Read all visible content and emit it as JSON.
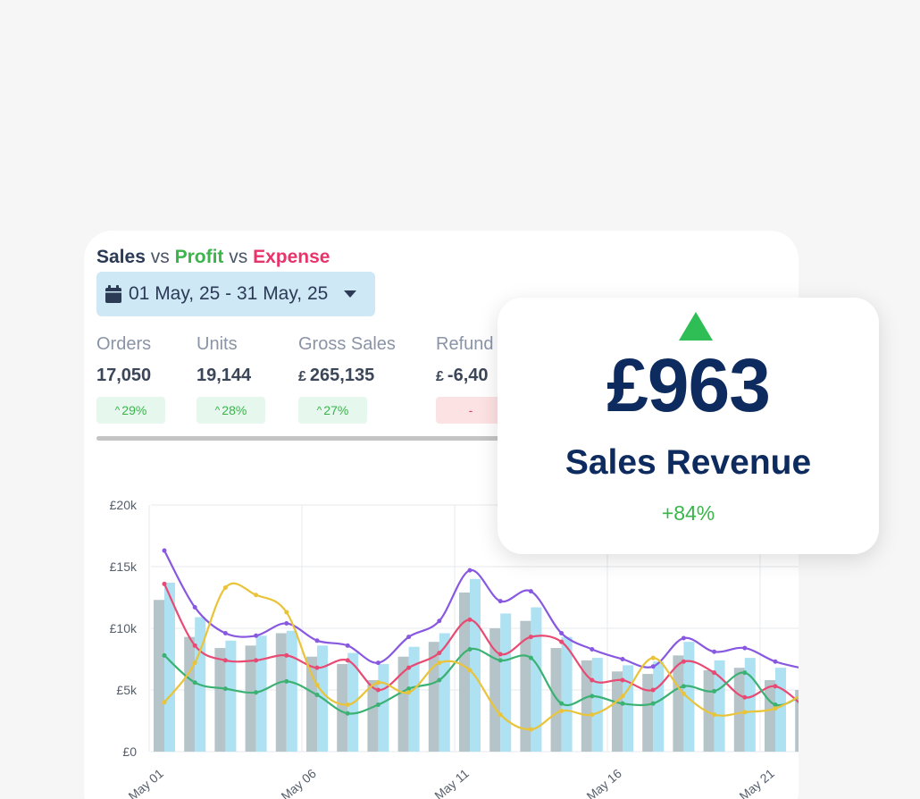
{
  "header": {
    "title_sales": "Sales",
    "title_vs1": " vs ",
    "title_profit": "Profit",
    "title_vs2": " vs ",
    "title_expense": "Expense",
    "date_range": "01 May, 25 - 31 May, 25"
  },
  "kpis": [
    {
      "label": "Orders",
      "currency": "",
      "value": "17,050",
      "change": "29%",
      "direction": "up"
    },
    {
      "label": "Units",
      "currency": "",
      "value": "19,144",
      "change": "28%",
      "direction": "up"
    },
    {
      "label": "Gross Sales",
      "currency": "£",
      "value": "265,135",
      "change": "27%",
      "direction": "up"
    },
    {
      "label": "Refund",
      "currency": "£",
      "value": "-6,40",
      "change": "-",
      "direction": "down"
    }
  ],
  "revenue_card": {
    "amount": "£963",
    "label": "Sales Revenue",
    "change": "+84%"
  },
  "colors": {
    "sales": "#2b3a55",
    "profit": "#39b54a",
    "expense": "#e8336b",
    "accent_up": "#2fbe55",
    "revenue_text": "#0d2b5e"
  },
  "chart_data": {
    "type": "bar",
    "y_tick_labels": [
      "£0",
      "£5k",
      "£10k",
      "£15k",
      "£20k"
    ],
    "ylim": [
      0,
      20000
    ],
    "x_tick_labels": [
      "May 01",
      "May 06",
      "May 11",
      "May 16",
      "May 21"
    ],
    "grid": true,
    "categories": [
      "1",
      "2",
      "3",
      "4",
      "5",
      "6",
      "7",
      "8",
      "9",
      "10",
      "11",
      "12",
      "13",
      "14",
      "15",
      "16",
      "17",
      "18",
      "19",
      "20",
      "21",
      "22"
    ],
    "series": [
      {
        "kind": "bar",
        "color": "#b5c4c9",
        "values": [
          12300,
          9300,
          8400,
          8600,
          9600,
          7700,
          7100,
          5800,
          7700,
          8900,
          12900,
          10000,
          10600,
          8400,
          7400,
          6500,
          6300,
          7800,
          6600,
          6800,
          5800,
          5000
        ]
      },
      {
        "kind": "bar",
        "color": "#aee1f1",
        "values": [
          13700,
          10900,
          9000,
          9400,
          9800,
          8600,
          8000,
          7100,
          8500,
          9600,
          14000,
          11200,
          11700,
          9300,
          7600,
          7000,
          7300,
          8900,
          7400,
          7600,
          6800,
          5200
        ]
      },
      {
        "kind": "line",
        "color": "#8858e0",
        "values": [
          16300,
          11700,
          9600,
          9400,
          10400,
          9000,
          8600,
          7200,
          9300,
          10600,
          14700,
          12200,
          13000,
          9600,
          8300,
          7500,
          6900,
          9200,
          8100,
          8400,
          7300,
          6700
        ]
      },
      {
        "kind": "line",
        "color": "#e84a73",
        "values": [
          13600,
          8600,
          7400,
          7400,
          7800,
          6800,
          7400,
          5000,
          6800,
          8000,
          10700,
          7900,
          9300,
          8900,
          5800,
          5800,
          5000,
          7300,
          6400,
          4400,
          5300,
          3500
        ]
      },
      {
        "kind": "line",
        "color": "#3bb273",
        "values": [
          7800,
          5600,
          5100,
          4800,
          5700,
          4600,
          3100,
          3800,
          5100,
          5800,
          8300,
          7400,
          7600,
          3900,
          4500,
          3900,
          3900,
          5300,
          4900,
          6400,
          3800,
          4800
        ]
      },
      {
        "kind": "line",
        "color": "#e9c43a",
        "values": [
          4000,
          7200,
          13300,
          12700,
          11300,
          5400,
          3800,
          5600,
          4800,
          7200,
          6600,
          3000,
          1800,
          3300,
          3000,
          4500,
          7600,
          4700,
          3000,
          3200,
          3500,
          4800
        ]
      }
    ]
  }
}
